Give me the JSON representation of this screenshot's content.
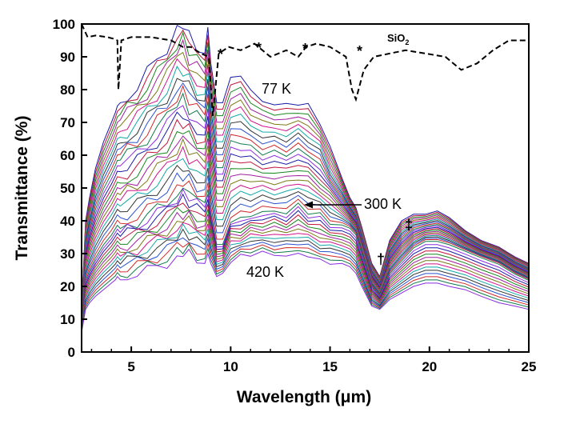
{
  "chart_data": {
    "type": "line",
    "xlabel": "Wavelength (μm)",
    "ylabel": "Transmittance (%)",
    "xlim": [
      2.5,
      25
    ],
    "ylim": [
      0,
      100
    ],
    "x_ticks": [
      "5",
      "10",
      "15",
      "20",
      "25"
    ],
    "y_ticks": [
      "0",
      "10",
      "20",
      "30",
      "40",
      "50",
      "60",
      "70",
      "80",
      "90",
      "100"
    ],
    "grid": false,
    "legend": "none",
    "annotations": {
      "t_low": "77 K",
      "t_mid": "300 K",
      "t_high": "420 K",
      "ref_label_main": "SiO",
      "ref_label_sub": "2",
      "star_marker": "*",
      "dagger": "†",
      "double_dagger": "‡"
    },
    "reference_series": {
      "name": "SiO2",
      "style": "dashed",
      "x": [
        2.5,
        2.8,
        3.2,
        3.8,
        4.1,
        4.3,
        4.35,
        4.5,
        5.0,
        6.0,
        7.0,
        7.6,
        8.0,
        8.5,
        8.9,
        9.1,
        9.4,
        9.9,
        10.5,
        11.2,
        12.0,
        12.8,
        13.4,
        13.8,
        14.3,
        15.0,
        15.8,
        16.1,
        16.3,
        16.7,
        17.2,
        18.0,
        18.8,
        19.8,
        20.8,
        21.6,
        22.4,
        23.2,
        24.0,
        25.0
      ],
      "y": [
        100,
        96,
        96.5,
        96,
        95.5,
        95,
        80,
        95,
        96,
        96,
        95,
        93,
        93,
        91,
        90,
        72,
        91,
        93,
        92,
        94,
        90,
        92,
        90,
        93,
        94,
        93,
        90,
        80,
        77,
        86,
        90,
        91,
        92,
        91,
        90,
        86,
        88,
        92,
        95,
        95
      ]
    },
    "curve_colors": [
      "#1a1aa6",
      "#c0143c",
      "#16861d",
      "#a01ea0",
      "#7a7a14",
      "#d0148c",
      "#13a8a8",
      "#333333",
      "#2a50d0",
      "#d02828",
      "#0f7a4a",
      "#8a2be2"
    ],
    "temperature_series": {
      "count": 36,
      "T_first": "77 K",
      "T_mid": "300 K",
      "T_last": "420 K",
      "x": [
        2.5,
        2.7,
        2.9,
        3.2,
        3.6,
        4.0,
        4.2,
        4.3,
        4.45,
        4.8,
        5.3,
        5.8,
        6.3,
        6.8,
        7.3,
        7.6,
        7.9,
        8.3,
        8.7,
        8.85,
        9.0,
        9.3,
        9.6,
        10.0,
        10.5,
        11.0,
        11.6,
        12.2,
        12.8,
        13.4,
        13.9,
        14.5,
        15.0,
        15.6,
        16.0,
        16.3,
        16.6,
        17.1,
        17.5,
        18.0,
        18.6,
        19.2,
        19.8,
        20.4,
        21.0,
        21.8,
        22.6,
        23.5,
        24.3,
        25.0
      ],
      "curve_first": [
        13,
        40,
        47,
        56,
        64,
        70,
        73,
        75,
        76,
        78,
        81,
        85,
        89,
        93,
        99,
        100,
        96,
        93,
        91,
        99,
        88,
        76,
        76,
        84,
        84,
        80,
        76,
        76,
        75,
        76,
        75,
        70,
        62,
        53,
        47,
        44,
        38,
        27,
        23,
        34,
        40,
        42,
        42,
        43,
        41,
        37,
        34,
        32,
        29,
        27
      ],
      "curve_mid": [
        9,
        22,
        25,
        29,
        33,
        36,
        38,
        39,
        38,
        39,
        40,
        42,
        44,
        46,
        49,
        50,
        49,
        47,
        46,
        50,
        43,
        33,
        33,
        40,
        41,
        42,
        43,
        43,
        43,
        45,
        43,
        42,
        40,
        39,
        38,
        36,
        30,
        20,
        17,
        24,
        28,
        32,
        34,
        34,
        33,
        31,
        29,
        27,
        24,
        22
      ],
      "curve_last": [
        6,
        13,
        15,
        17,
        19,
        21,
        22,
        23,
        22,
        23,
        24,
        25,
        26,
        27,
        29,
        30,
        30,
        28,
        27,
        30,
        27,
        23,
        24,
        28,
        29,
        30,
        30,
        30,
        29,
        30,
        29,
        28,
        27,
        27,
        26,
        24,
        20,
        14,
        13,
        16,
        18,
        20,
        21,
        21,
        20,
        19,
        17,
        15,
        14,
        13
      ]
    }
  }
}
